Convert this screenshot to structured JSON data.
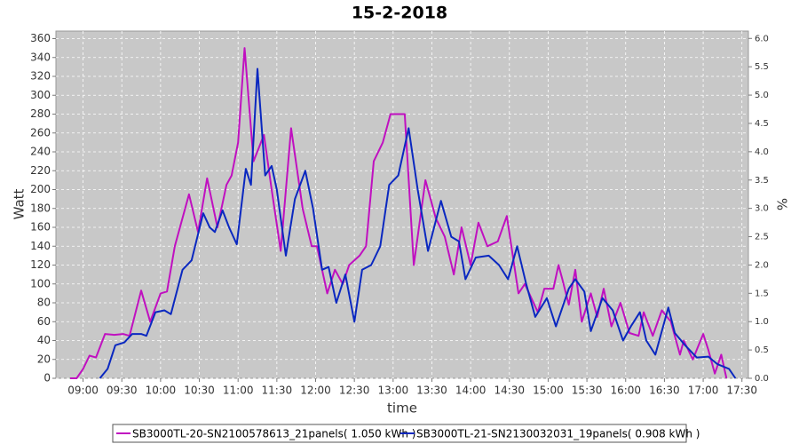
{
  "chart_data": {
    "type": "line",
    "title": "15-2-2018",
    "x_label": "time",
    "y_label": "Watt",
    "y2_label": "%",
    "grid": true,
    "legend": "bottom",
    "xlim": [
      519,
      1055
    ],
    "xticks": [
      {
        "value": 540,
        "label": "09:00"
      },
      {
        "value": 570,
        "label": "09:30"
      },
      {
        "value": 600,
        "label": "10:00"
      },
      {
        "value": 630,
        "label": "10:30"
      },
      {
        "value": 660,
        "label": "11:00"
      },
      {
        "value": 690,
        "label": "11:30"
      },
      {
        "value": 720,
        "label": "12:00"
      },
      {
        "value": 750,
        "label": "12:30"
      },
      {
        "value": 780,
        "label": "13:00"
      },
      {
        "value": 810,
        "label": "13:30"
      },
      {
        "value": 840,
        "label": "14:00"
      },
      {
        "value": 870,
        "label": "14:30"
      },
      {
        "value": 900,
        "label": "15:00"
      },
      {
        "value": 930,
        "label": "15:30"
      },
      {
        "value": 960,
        "label": "16:00"
      },
      {
        "value": 990,
        "label": "16:30"
      },
      {
        "value": 1020,
        "label": "17:00"
      },
      {
        "value": 1050,
        "label": "17:30"
      }
    ],
    "ylim": [
      0,
      368
    ],
    "yticks": [
      0,
      20,
      40,
      60,
      80,
      100,
      120,
      140,
      160,
      180,
      200,
      220,
      240,
      260,
      280,
      300,
      320,
      340,
      360
    ],
    "y2lim": [
      0,
      6.13
    ],
    "y2ticks": [
      {
        "value": 0,
        "label": "0.0"
      },
      0.5,
      {
        "value": 1,
        "label": "1.0"
      },
      1.5,
      {
        "value": 2,
        "label": "2.0"
      },
      2.5,
      {
        "value": 3,
        "label": "3.0"
      },
      3.5,
      {
        "value": 4,
        "label": "4.0"
      },
      4.5,
      {
        "value": 5,
        "label": "5.0"
      },
      5.5,
      {
        "value": 6,
        "label": "6.0"
      }
    ],
    "series": [
      {
        "name": "SB3000TL-20-SN2100578613_21panels( 1.050 kWh )",
        "color": "#c010c0",
        "x": [
          530,
          535,
          540,
          545,
          550,
          557,
          564,
          571,
          576,
          585,
          592,
          600,
          605,
          611,
          622,
          629,
          636,
          644,
          651,
          655,
          660,
          665,
          672,
          680,
          686,
          693,
          701,
          710,
          717,
          721,
          729,
          735,
          741,
          746,
          754,
          759,
          765,
          772,
          778,
          789,
          796,
          805,
          813,
          820,
          827,
          833,
          840,
          846,
          853,
          861,
          868,
          877,
          882,
          892,
          897,
          904,
          908,
          911,
          916,
          921,
          926,
          933,
          938,
          943,
          949,
          956,
          963,
          970,
          974,
          981,
          988,
          995,
          1002,
          1005,
          1012,
          1020,
          1024,
          1029,
          1034,
          1038
        ],
        "values": [
          0,
          0,
          10,
          24,
          22,
          47,
          46,
          47,
          45,
          93,
          60,
          90,
          92,
          140,
          195,
          155,
          212,
          160,
          205,
          215,
          250,
          350,
          230,
          258,
          200,
          135,
          265,
          180,
          140,
          140,
          90,
          115,
          100,
          120,
          130,
          140,
          230,
          250,
          280,
          280,
          120,
          210,
          170,
          150,
          110,
          160,
          120,
          165,
          140,
          145,
          172,
          90,
          100,
          70,
          95,
          95,
          120,
          105,
          78,
          115,
          60,
          90,
          65,
          95,
          55,
          80,
          48,
          45,
          70,
          45,
          72,
          60,
          25,
          40,
          20,
          47,
          30,
          5,
          25,
          0
        ]
      },
      {
        "name": "SB3000TL-21-SN2130032031_19panels( 0.908 kWh )",
        "color": "#0a28c0",
        "x": [
          553,
          559,
          565,
          572,
          578,
          585,
          589,
          596,
          603,
          608,
          617,
          624,
          633,
          638,
          642,
          648,
          653,
          659,
          666,
          670,
          675,
          681,
          686,
          690,
          697,
          704,
          712,
          718,
          725,
          730,
          736,
          743,
          750,
          756,
          763,
          770,
          777,
          784,
          792,
          799,
          807,
          817,
          825,
          831,
          836,
          844,
          854,
          862,
          869,
          876,
          883,
          890,
          899,
          906,
          916,
          921,
          928,
          933,
          942,
          950,
          958,
          964,
          971,
          976,
          983,
          993,
          998,
          1006,
          1015,
          1024,
          1031,
          1040,
          1045
        ],
        "values": [
          0,
          10,
          35,
          38,
          47,
          47,
          45,
          70,
          72,
          68,
          115,
          125,
          175,
          160,
          155,
          178,
          160,
          142,
          222,
          205,
          328,
          215,
          225,
          200,
          130,
          190,
          220,
          180,
          115,
          118,
          80,
          110,
          60,
          115,
          120,
          140,
          205,
          215,
          265,
          200,
          135,
          188,
          150,
          145,
          105,
          128,
          130,
          120,
          105,
          140,
          100,
          65,
          85,
          55,
          95,
          105,
          92,
          50,
          85,
          72,
          40,
          55,
          70,
          40,
          25,
          75,
          48,
          35,
          22,
          23,
          15,
          10,
          0
        ]
      }
    ]
  }
}
